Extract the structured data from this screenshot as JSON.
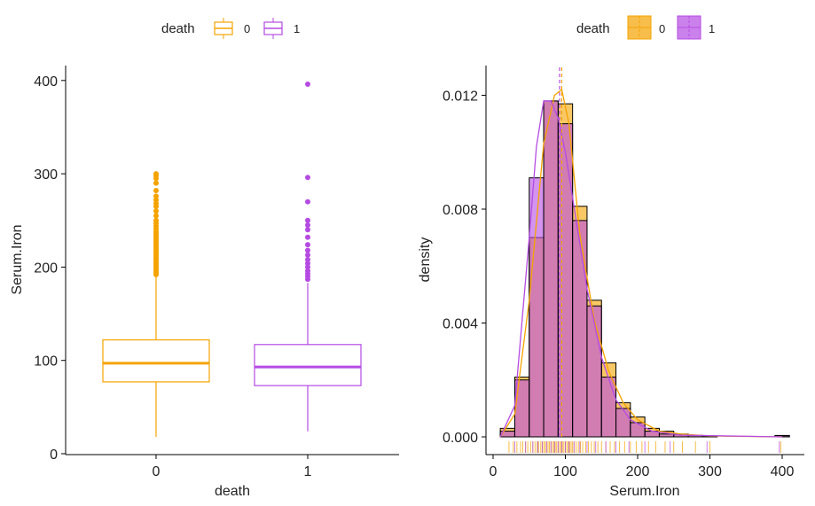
{
  "colors": {
    "group0": "#F5A300",
    "group1": "#B54BE3",
    "overlap": "#DC8AB0",
    "axis": "#000000"
  },
  "chart_data": [
    {
      "type": "box",
      "xlabel": "death",
      "ylabel": "Serum.Iron",
      "legend": {
        "title": "death",
        "entries": [
          "0",
          "1"
        ],
        "placement": "top"
      },
      "categories": [
        "0",
        "1"
      ],
      "ylim": [
        0,
        410
      ],
      "yticks": [
        0,
        100,
        200,
        300,
        400
      ],
      "boxes": [
        {
          "category": "0",
          "whisker_low": 18,
          "q1": 77,
          "median": 97,
          "q3": 122,
          "whisker_high": 190,
          "outliers": [
            192,
            194,
            196,
            198,
            200,
            202,
            204,
            206,
            208,
            210,
            212,
            214,
            216,
            218,
            220,
            222,
            224,
            226,
            228,
            230,
            232,
            234,
            236,
            238,
            241,
            244,
            247,
            250,
            255,
            260,
            265,
            268,
            272,
            276,
            282,
            290,
            295,
            298,
            300
          ]
        },
        {
          "category": "1",
          "whisker_low": 24,
          "q1": 73,
          "median": 93,
          "q3": 117,
          "whisker_high": 183,
          "outliers": [
            187,
            190,
            193,
            196,
            200,
            204,
            208,
            213,
            218,
            224,
            232,
            240,
            245,
            250,
            270,
            296,
            396
          ]
        }
      ]
    },
    {
      "type": "histogram",
      "xlabel": "Serum.Iron",
      "ylabel": "density",
      "legend": {
        "title": "death",
        "entries": [
          "0",
          "1"
        ],
        "placement": "top"
      },
      "xlim": [
        -10,
        415
      ],
      "ylim": [
        -0.0005,
        0.0128
      ],
      "xticks": [
        0,
        100,
        200,
        300,
        400
      ],
      "yticks": [
        0.0,
        0.004,
        0.008,
        0.012
      ],
      "ytick_labels": [
        "0.000",
        "0.004",
        "0.008",
        "0.012"
      ],
      "bin_width": 20,
      "bins": [
        10,
        30,
        50,
        70,
        90,
        110,
        130,
        150,
        170,
        190,
        210,
        230,
        250,
        270,
        290,
        310,
        330,
        350,
        370,
        390,
        410
      ],
      "mean_lines": {
        "0": 95,
        "1": 92
      },
      "series": [
        {
          "name": "0",
          "densities": [
            0.0003,
            0.0021,
            0.007,
            0.0118,
            0.0117,
            0.0081,
            0.0048,
            0.0026,
            0.0012,
            0.0007,
            0.0003,
            0.0002,
            0.0001,
            5e-05,
            3e-05,
            0,
            0,
            0,
            0,
            5e-05
          ]
        },
        {
          "name": "1",
          "densities": [
            0.0002,
            0.002,
            0.0091,
            0.0118,
            0.011,
            0.0076,
            0.0046,
            0.0021,
            0.001,
            0.0005,
            0.0002,
            0.0001,
            8e-05,
            5e-05,
            3e-05,
            0,
            0,
            0,
            0,
            4e-05
          ]
        }
      ],
      "density_curves": [
        {
          "name": "0",
          "x": [
            10,
            30,
            50,
            70,
            85,
            95,
            105,
            120,
            140,
            160,
            180,
            200,
            230,
            260,
            300,
            400
          ],
          "y": [
            0.0,
            0.0008,
            0.0048,
            0.0103,
            0.012,
            0.0122,
            0.011,
            0.0071,
            0.0041,
            0.0023,
            0.0012,
            0.0006,
            0.0002,
            0.0001,
            3e-05,
            0.0
          ]
        },
        {
          "name": "1",
          "x": [
            10,
            30,
            50,
            60,
            70,
            80,
            90,
            100,
            115,
            130,
            150,
            170,
            190,
            220,
            260,
            400
          ],
          "y": [
            0.0,
            0.0011,
            0.007,
            0.0102,
            0.0118,
            0.0118,
            0.0112,
            0.01,
            0.0076,
            0.0052,
            0.0028,
            0.0013,
            0.0006,
            0.0002,
            6e-05,
            0.0
          ]
        }
      ],
      "rug": {
        "0": [
          22,
          28,
          33,
          38,
          41,
          45,
          48,
          52,
          55,
          58,
          61,
          63,
          66,
          68,
          70,
          72,
          74,
          76,
          78,
          80,
          82,
          84,
          86,
          88,
          90,
          92,
          94,
          96,
          98,
          100,
          102,
          104,
          106,
          108,
          110,
          112,
          115,
          118,
          121,
          124,
          128,
          132,
          136,
          140,
          145,
          150,
          156,
          162,
          168,
          175,
          182,
          190,
          198,
          206,
          215,
          225,
          238,
          250,
          262,
          280,
          300,
          398
        ],
        "1": [
          30,
          45,
          55,
          62,
          68,
          74,
          80,
          85,
          90,
          95,
          100,
          105,
          112,
          120,
          130,
          142,
          156,
          170,
          188,
          210,
          245,
          296,
          396
        ]
      }
    }
  ]
}
